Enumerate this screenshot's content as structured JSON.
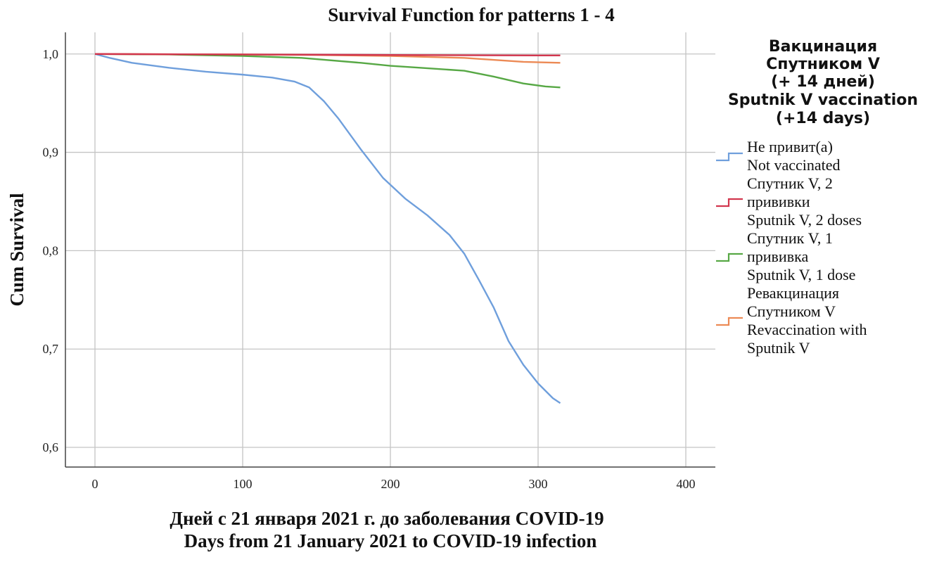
{
  "chart_data": {
    "type": "line",
    "title": "Survival Function for patterns 1 - 4",
    "xlabel_ru": "Дней с 21 января 2021 г. до заболевания COVID-19",
    "xlabel_en": "Days from 21 January 2021 to COVID-19 infection",
    "ylabel": "Cum Survival",
    "xlim": [
      -20,
      420
    ],
    "ylim": [
      0.58,
      1.022
    ],
    "x_ticks": [
      {
        "value": 0,
        "label": "0"
      },
      {
        "value": 100,
        "label": "100"
      },
      {
        "value": 200,
        "label": "200"
      },
      {
        "value": 300,
        "label": "300"
      },
      {
        "value": 400,
        "label": "400"
      }
    ],
    "y_ticks": [
      {
        "value": 0.6,
        "label": "0,6"
      },
      {
        "value": 0.7,
        "label": "0,7"
      },
      {
        "value": 0.8,
        "label": "0,8"
      },
      {
        "value": 0.9,
        "label": "0,9"
      },
      {
        "value": 1.0,
        "label": "1,0"
      }
    ],
    "grid": true,
    "legend_position": "right",
    "legend_title": [
      "Вакцинация",
      "Спутником V",
      "(+ 14 дней)",
      "Sputnik V vaccination",
      "(+14 days)"
    ],
    "series": [
      {
        "legend_lines": [
          "Не привит(а)",
          "Not vaccinated"
        ],
        "color": "#6f9fdc",
        "x": [
          0,
          10,
          25,
          50,
          75,
          100,
          120,
          135,
          145,
          155,
          165,
          180,
          195,
          210,
          225,
          240,
          250,
          260,
          270,
          280,
          290,
          300,
          310,
          315
        ],
        "y": [
          1.0,
          0.996,
          0.991,
          0.986,
          0.982,
          0.979,
          0.976,
          0.972,
          0.966,
          0.952,
          0.934,
          0.903,
          0.874,
          0.853,
          0.836,
          0.816,
          0.797,
          0.77,
          0.742,
          0.708,
          0.684,
          0.665,
          0.65,
          0.645
        ]
      },
      {
        "legend_lines": [
          "Спутник V, 2",
          "прививки",
          "Sputnik V, 2 doses"
        ],
        "color": "#d2364e",
        "x": [
          0,
          100,
          200,
          300,
          315
        ],
        "y": [
          1.0,
          0.9995,
          0.999,
          0.9985,
          0.9985
        ]
      },
      {
        "legend_lines": [
          "Спутник V, 1",
          "прививка",
          "Sputnik V, 1 dose"
        ],
        "color": "#57a845",
        "x": [
          0,
          50,
          100,
          140,
          180,
          200,
          220,
          250,
          270,
          290,
          305,
          315
        ],
        "y": [
          1.0,
          0.9995,
          0.998,
          0.996,
          0.991,
          0.988,
          0.986,
          0.983,
          0.977,
          0.97,
          0.967,
          0.966
        ]
      },
      {
        "legend_lines": [
          "Ревакцинация",
          "Спутником V",
          "Revaccination with",
          "Sputnik V"
        ],
        "color": "#ec8a55",
        "x": [
          0,
          100,
          150,
          200,
          250,
          290,
          315
        ],
        "y": [
          1.0,
          0.9995,
          0.999,
          0.998,
          0.996,
          0.992,
          0.991
        ]
      }
    ]
  }
}
